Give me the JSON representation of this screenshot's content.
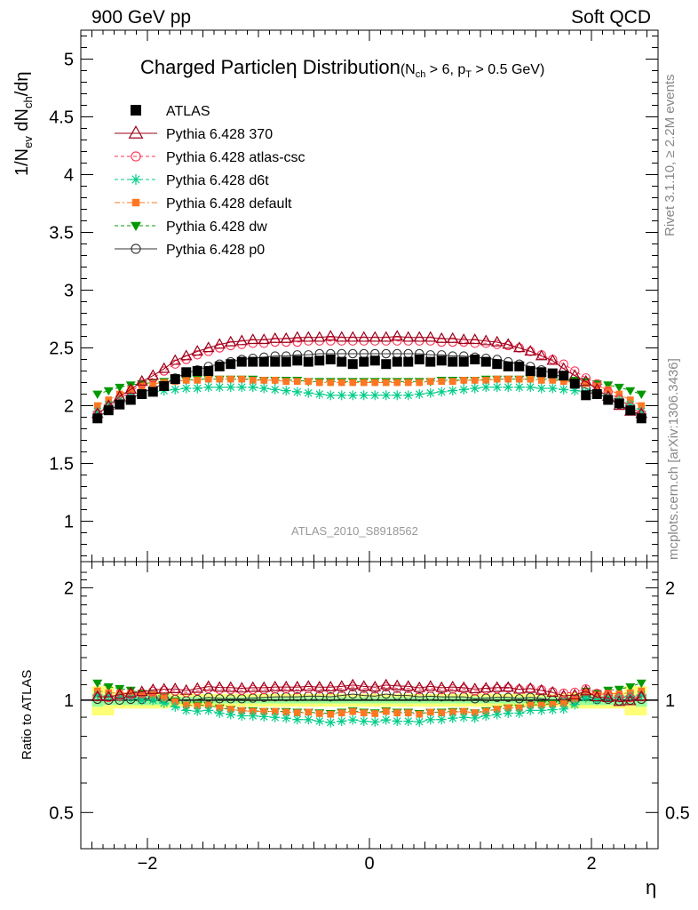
{
  "header": {
    "energy_label": "900 GeV pp",
    "category_label": "Soft QCD"
  },
  "side_labels": {
    "rivet": "Rivet 3.1.10, ≥ 2.2M events",
    "mcplots": "mcplots.cern.ch [arXiv:1306.3436]"
  },
  "chart_data": [
    {
      "type": "scatter",
      "title_main": "Charged Particle",
      "title_eta": "η",
      "title_rest": "Distribution",
      "title_cuts": "(N_ch > 6, p_T > 0.5 GeV)",
      "watermark": "ATLAS_2010_S8918562",
      "ylabel": "1/N_ev dN_ch/dη",
      "xlim": [
        -2.6,
        2.6
      ],
      "ylim": [
        0.65,
        5.25
      ],
      "yticks_labeled": [
        1,
        1.5,
        2,
        2.5,
        3,
        3.5,
        4,
        4.5,
        5
      ],
      "ytick_labels": [
        "1",
        "1.5",
        "2",
        "2.5",
        "3",
        "3.5",
        "4",
        "4.5",
        "5"
      ],
      "legend_position": "top-left",
      "x": [
        -2.45,
        -2.35,
        -2.25,
        -2.15,
        -2.05,
        -1.95,
        -1.85,
        -1.75,
        -1.65,
        -1.55,
        -1.45,
        -1.35,
        -1.25,
        -1.15,
        -1.05,
        -0.95,
        -0.85,
        -0.75,
        -0.65,
        -0.55,
        -0.45,
        -0.35,
        -0.25,
        -0.15,
        -0.05,
        0.05,
        0.15,
        0.25,
        0.35,
        0.45,
        0.55,
        0.65,
        0.75,
        0.85,
        0.95,
        1.05,
        1.15,
        1.25,
        1.35,
        1.45,
        1.55,
        1.65,
        1.75,
        1.85,
        1.95,
        2.05,
        2.15,
        2.25,
        2.35,
        2.45
      ],
      "series": [
        {
          "name": "ATLAS",
          "color": "#000000",
          "marker": "square-filled",
          "line": "none",
          "values": [
            1.89,
            1.96,
            2.01,
            2.05,
            2.1,
            2.12,
            2.17,
            2.23,
            2.29,
            2.3,
            2.3,
            2.34,
            2.36,
            2.38,
            2.38,
            2.38,
            2.38,
            2.38,
            2.39,
            2.38,
            2.39,
            2.4,
            2.38,
            2.36,
            2.38,
            2.39,
            2.36,
            2.38,
            2.38,
            2.4,
            2.38,
            2.39,
            2.38,
            2.38,
            2.4,
            2.38,
            2.36,
            2.34,
            2.34,
            2.3,
            2.29,
            2.28,
            2.26,
            2.19,
            2.09,
            2.1,
            2.05,
            2.02,
            1.96,
            1.89
          ]
        },
        {
          "name": "Pythia 6.428 370",
          "color": "#99001a",
          "marker": "triangle-open",
          "line": "solid",
          "values": [
            1.93,
            2.0,
            2.08,
            2.14,
            2.21,
            2.26,
            2.32,
            2.39,
            2.43,
            2.47,
            2.5,
            2.53,
            2.55,
            2.56,
            2.57,
            2.57,
            2.58,
            2.58,
            2.59,
            2.59,
            2.59,
            2.6,
            2.59,
            2.59,
            2.59,
            2.59,
            2.59,
            2.6,
            2.59,
            2.59,
            2.59,
            2.58,
            2.58,
            2.57,
            2.57,
            2.56,
            2.55,
            2.53,
            2.5,
            2.47,
            2.43,
            2.39,
            2.32,
            2.26,
            2.21,
            2.14,
            2.08,
            2.0,
            1.95,
            1.93
          ]
        },
        {
          "name": "Pythia 6.428 atlas-csc",
          "color": "#ff3355",
          "marker": "circle-open",
          "line": "dashed",
          "values": [
            1.93,
            1.99,
            2.06,
            2.12,
            2.19,
            2.24,
            2.3,
            2.36,
            2.4,
            2.44,
            2.47,
            2.5,
            2.52,
            2.53,
            2.54,
            2.54,
            2.55,
            2.55,
            2.55,
            2.56,
            2.56,
            2.56,
            2.56,
            2.56,
            2.56,
            2.56,
            2.56,
            2.56,
            2.56,
            2.56,
            2.56,
            2.55,
            2.55,
            2.55,
            2.54,
            2.54,
            2.53,
            2.52,
            2.5,
            2.47,
            2.44,
            2.4,
            2.36,
            2.3,
            2.24,
            2.19,
            2.12,
            2.06,
            1.99,
            1.93
          ]
        },
        {
          "name": "Pythia 6.428 d6t",
          "color": "#00cc88",
          "marker": "star",
          "line": "dashed",
          "values": [
            1.95,
            2.01,
            2.05,
            2.08,
            2.1,
            2.12,
            2.13,
            2.14,
            2.15,
            2.15,
            2.16,
            2.16,
            2.16,
            2.16,
            2.16,
            2.15,
            2.14,
            2.13,
            2.12,
            2.11,
            2.1,
            2.09,
            2.09,
            2.09,
            2.09,
            2.09,
            2.09,
            2.09,
            2.09,
            2.1,
            2.11,
            2.12,
            2.13,
            2.14,
            2.15,
            2.16,
            2.16,
            2.16,
            2.16,
            2.16,
            2.15,
            2.15,
            2.14,
            2.13,
            2.12,
            2.1,
            2.08,
            2.05,
            2.01,
            1.95
          ]
        },
        {
          "name": "Pythia 6.428 default",
          "color": "#ff7722",
          "marker": "square-filled-small",
          "line": "dashdot",
          "values": [
            2.0,
            2.05,
            2.1,
            2.14,
            2.17,
            2.19,
            2.2,
            2.21,
            2.22,
            2.22,
            2.23,
            2.23,
            2.23,
            2.23,
            2.22,
            2.22,
            2.22,
            2.21,
            2.21,
            2.21,
            2.2,
            2.2,
            2.2,
            2.2,
            2.2,
            2.2,
            2.2,
            2.2,
            2.2,
            2.2,
            2.21,
            2.21,
            2.21,
            2.22,
            2.22,
            2.22,
            2.23,
            2.23,
            2.23,
            2.23,
            2.22,
            2.22,
            2.21,
            2.2,
            2.19,
            2.17,
            2.14,
            2.1,
            2.05,
            2.0
          ]
        },
        {
          "name": "Pythia 6.428 dw",
          "color": "#009900",
          "marker": "triangle-down-filled",
          "line": "dashed",
          "values": [
            2.1,
            2.13,
            2.16,
            2.18,
            2.19,
            2.2,
            2.21,
            2.22,
            2.22,
            2.23,
            2.23,
            2.23,
            2.23,
            2.23,
            2.23,
            2.22,
            2.22,
            2.22,
            2.22,
            2.21,
            2.21,
            2.21,
            2.21,
            2.21,
            2.21,
            2.21,
            2.21,
            2.21,
            2.21,
            2.21,
            2.21,
            2.22,
            2.22,
            2.22,
            2.22,
            2.23,
            2.23,
            2.23,
            2.23,
            2.23,
            2.23,
            2.23,
            2.22,
            2.22,
            2.21,
            2.19,
            2.18,
            2.16,
            2.13,
            2.1
          ]
        },
        {
          "name": "Pythia 6.428 p0",
          "color": "#333333",
          "marker": "circle-open",
          "line": "solid",
          "values": [
            1.9,
            1.96,
            2.01,
            2.06,
            2.11,
            2.15,
            2.19,
            2.24,
            2.28,
            2.31,
            2.34,
            2.36,
            2.38,
            2.4,
            2.41,
            2.42,
            2.43,
            2.43,
            2.44,
            2.44,
            2.45,
            2.45,
            2.45,
            2.45,
            2.45,
            2.45,
            2.45,
            2.45,
            2.45,
            2.45,
            2.44,
            2.44,
            2.43,
            2.43,
            2.42,
            2.41,
            2.4,
            2.38,
            2.36,
            2.34,
            2.31,
            2.28,
            2.24,
            2.19,
            2.15,
            2.11,
            2.06,
            2.01,
            1.96,
            1.9
          ]
        }
      ]
    },
    {
      "type": "scatter",
      "ylabel": "Ratio to ATLAS",
      "xlabel": "η",
      "xlim": [
        -2.6,
        2.6
      ],
      "ylim": [
        0.4,
        2.35
      ],
      "yscale": "log",
      "yticks_labeled": [
        0.5,
        1,
        2
      ],
      "ytick_labels": [
        "0.5",
        "1",
        "2"
      ],
      "xticks_labeled": [
        -2,
        0,
        2
      ],
      "xtick_labels": [
        "−2",
        "0",
        "2"
      ],
      "reference_line": 1.0,
      "band_inner_color": "#99ff99",
      "band_outer_color": "#ffff77",
      "band_inner_halfwidth": [
        0.04,
        0.03,
        0.03,
        0.03,
        0.03,
        0.03,
        0.03,
        0.02,
        0.02,
        0.02,
        0.02,
        0.02,
        0.02,
        0.02,
        0.02,
        0.02,
        0.02,
        0.02,
        0.02,
        0.02,
        0.02,
        0.02,
        0.02,
        0.02,
        0.02,
        0.02,
        0.02,
        0.02,
        0.02,
        0.02,
        0.02,
        0.02,
        0.02,
        0.02,
        0.02,
        0.02,
        0.02,
        0.02,
        0.02,
        0.02,
        0.02,
        0.02,
        0.02,
        0.03,
        0.03,
        0.03,
        0.03,
        0.03,
        0.03,
        0.04
      ],
      "band_outer_halfwidth": [
        0.09,
        0.09,
        0.05,
        0.05,
        0.05,
        0.05,
        0.05,
        0.04,
        0.04,
        0.04,
        0.04,
        0.04,
        0.04,
        0.04,
        0.04,
        0.04,
        0.04,
        0.04,
        0.04,
        0.04,
        0.04,
        0.04,
        0.04,
        0.04,
        0.04,
        0.04,
        0.04,
        0.04,
        0.04,
        0.04,
        0.04,
        0.04,
        0.04,
        0.04,
        0.04,
        0.04,
        0.04,
        0.04,
        0.04,
        0.04,
        0.04,
        0.04,
        0.04,
        0.05,
        0.05,
        0.05,
        0.05,
        0.05,
        0.09,
        0.09
      ]
    }
  ]
}
